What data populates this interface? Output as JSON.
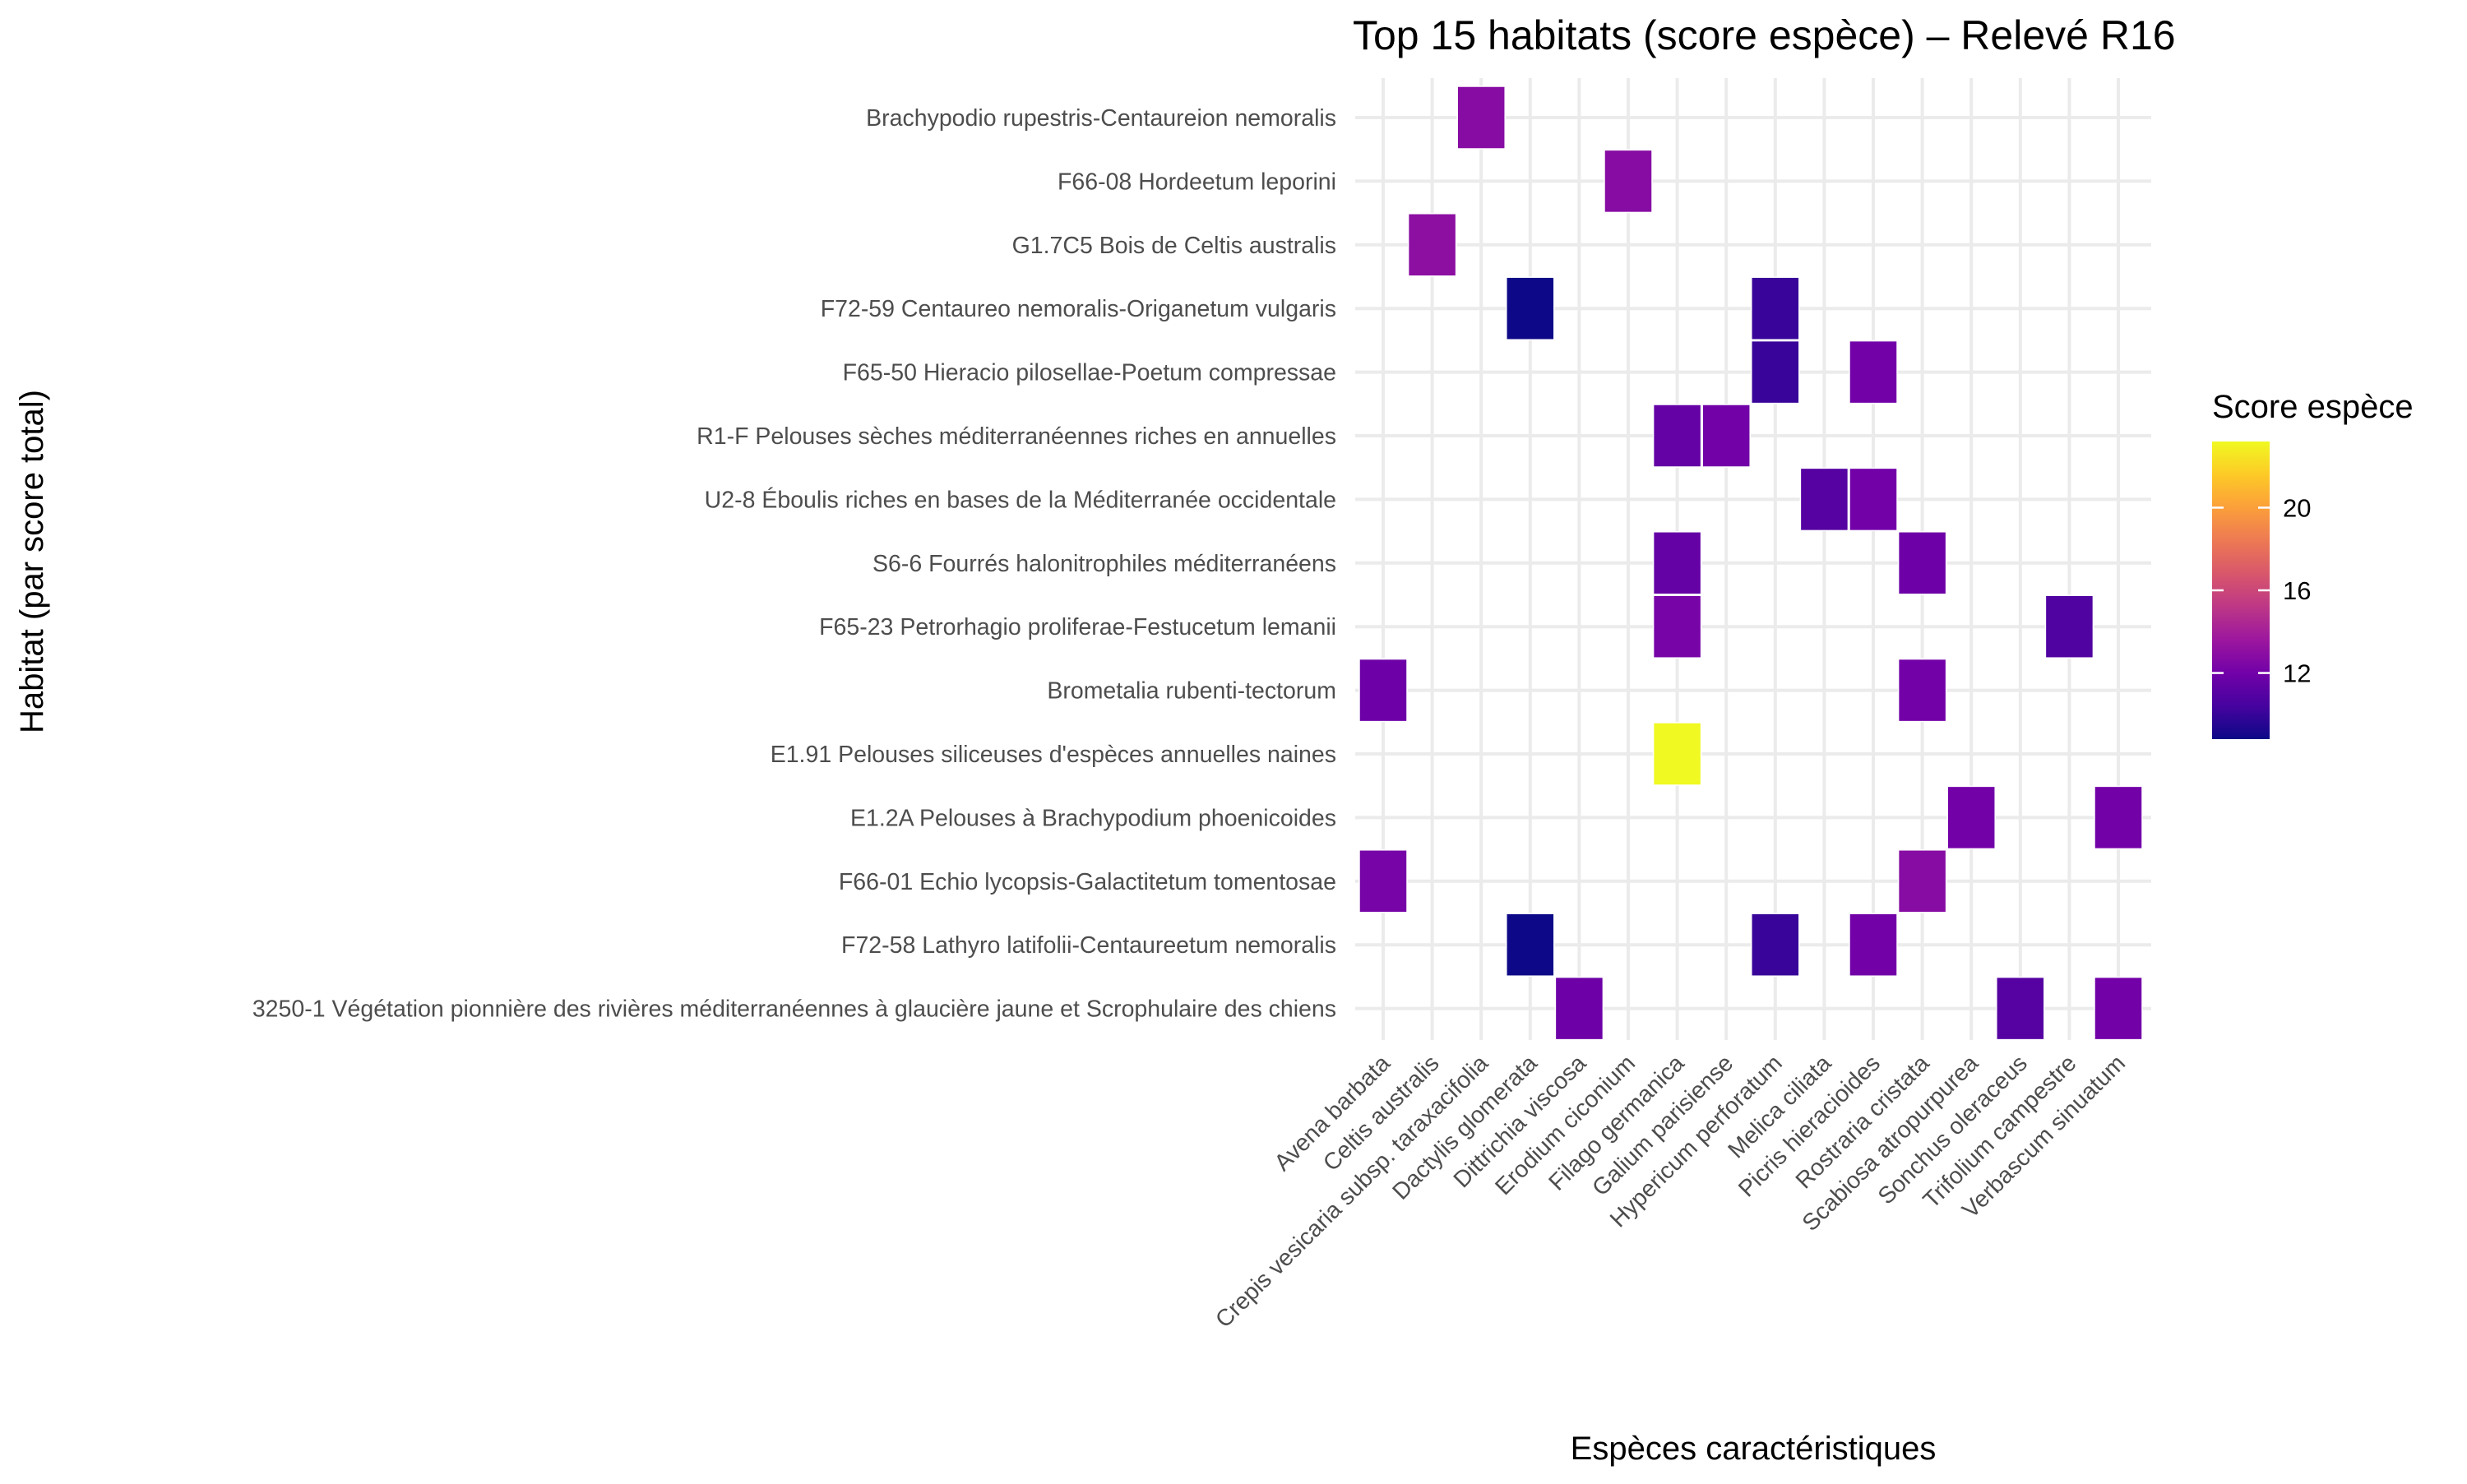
{
  "chart_data": {
    "type": "heatmap",
    "title": "Top 15 habitats (score espèce) – Relevé R16",
    "xlabel": "Espèces caractéristiques",
    "ylabel": "Habitat (par score total)",
    "legend": {
      "title": "Score espèce",
      "ticks": [
        12,
        16,
        20
      ],
      "range": [
        8.8,
        23.2
      ],
      "position": "right",
      "palette": "plasma",
      "colors": [
        "#0d0887",
        "#46039f",
        "#7201a8",
        "#9c179e",
        "#bd3786",
        "#d8576b",
        "#ed7953",
        "#fb9f3a",
        "#fdca26",
        "#f0f921"
      ]
    },
    "grid": true,
    "x_categories": [
      "Avena barbata",
      "Celtis australis",
      "Crepis vesicaria subsp. taraxacifolia",
      "Dactylis glomerata",
      "Dittrichia viscosa",
      "Erodium ciconium",
      "Filago germanica",
      "Galium parisiense",
      "Hypericum perforatum",
      "Melica ciliata",
      "Picris hieracioides",
      "Rostraria cristata",
      "Scabiosa atropurpurea",
      "Sonchus oleraceus",
      "Trifolium campestre",
      "Verbascum sinuatum"
    ],
    "y_categories": [
      "Brachypodio rupestris-Centaureion nemoralis",
      "F66-08 Hordeetum leporini",
      "G1.7C5 Bois de Celtis australis",
      "F72-59 Centaureo nemoralis-Origanetum vulgaris",
      "F65-50 Hieracio pilosellae-Poetum compressae",
      "R1-F Pelouses sèches méditerranéennes riches en annuelles",
      "U2-8 Éboulis riches en bases de la Méditerranée occidentale",
      "S6-6 Fourrés halonitrophiles méditerranéens",
      "F65-23 Petrorhagio proliferae-Festucetum lemanii",
      "Brometalia rubenti-tectorum",
      "E1.91 Pelouses siliceuses d'espèces annuelles naines",
      "E1.2A Pelouses à Brachypodium phoenicoides",
      "F66-01 Echio lycopsis-Galactitetum tomentosae",
      "F72-58 Lathyro latifolii-Centaureetum nemoralis",
      "3250-1 Végétation pionnière des rivières méditerranéennes à glaucière jaune et Scrophulaire des chiens"
    ],
    "cells": [
      {
        "habitat": "Brachypodio rupestris-Centaureion nemoralis",
        "species": "Crepis vesicaria subsp. taraxacifolia",
        "value": 12.8
      },
      {
        "habitat": "F66-08 Hordeetum leporini",
        "species": "Erodium ciconium",
        "value": 12.8
      },
      {
        "habitat": "G1.7C5 Bois de Celtis australis",
        "species": "Celtis australis",
        "value": 13.0
      },
      {
        "habitat": "F72-59 Centaureo nemoralis-Origanetum vulgaris",
        "species": "Dactylis glomerata",
        "value": 8.8
      },
      {
        "habitat": "F72-59 Centaureo nemoralis-Origanetum vulgaris",
        "species": "Hypericum perforatum",
        "value": 10.0
      },
      {
        "habitat": "F65-50 Hieracio pilosellae-Poetum compressae",
        "species": "Hypericum perforatum",
        "value": 10.0
      },
      {
        "habitat": "F65-50 Hieracio pilosellae-Poetum compressae",
        "species": "Picris hieracioides",
        "value": 12.0
      },
      {
        "habitat": "R1-F Pelouses sèches méditerranéennes riches en annuelles",
        "species": "Filago germanica",
        "value": 11.5
      },
      {
        "habitat": "R1-F Pelouses sèches méditerranéennes riches en annuelles",
        "species": "Galium parisiense",
        "value": 12.0
      },
      {
        "habitat": "U2-8 Éboulis riches en bases de la Méditerranée occidentale",
        "species": "Melica ciliata",
        "value": 11.0
      },
      {
        "habitat": "U2-8 Éboulis riches en bases de la Méditerranée occidentale",
        "species": "Picris hieracioides",
        "value": 12.0
      },
      {
        "habitat": "S6-6 Fourrés halonitrophiles méditerranéens",
        "species": "Filago germanica",
        "value": 11.5
      },
      {
        "habitat": "S6-6 Fourrés halonitrophiles méditerranéens",
        "species": "Rostraria cristata",
        "value": 11.8
      },
      {
        "habitat": "F65-23 Petrorhagio proliferae-Festucetum lemanii",
        "species": "Filago germanica",
        "value": 12.2
      },
      {
        "habitat": "F65-23 Petrorhagio proliferae-Festucetum lemanii",
        "species": "Trifolium campestre",
        "value": 10.8
      },
      {
        "habitat": "Brometalia rubenti-tectorum",
        "species": "Avena barbata",
        "value": 11.8
      },
      {
        "habitat": "Brometalia rubenti-tectorum",
        "species": "Rostraria cristata",
        "value": 12.0
      },
      {
        "habitat": "E1.91 Pelouses siliceuses d'espèces annuelles naines",
        "species": "Filago germanica",
        "value": 23.2
      },
      {
        "habitat": "E1.2A Pelouses à Brachypodium phoenicoides",
        "species": "Scabiosa atropurpurea",
        "value": 12.0
      },
      {
        "habitat": "E1.2A Pelouses à Brachypodium phoenicoides",
        "species": "Verbascum sinuatum",
        "value": 12.0
      },
      {
        "habitat": "F66-01 Echio lycopsis-Galactitetum tomentosae",
        "species": "Avena barbata",
        "value": 12.2
      },
      {
        "habitat": "F66-01 Echio lycopsis-Galactitetum tomentosae",
        "species": "Rostraria cristata",
        "value": 12.8
      },
      {
        "habitat": "F72-58 Lathyro latifolii-Centaureetum nemoralis",
        "species": "Dactylis glomerata",
        "value": 8.8
      },
      {
        "habitat": "F72-58 Lathyro latifolii-Centaureetum nemoralis",
        "species": "Hypericum perforatum",
        "value": 10.0
      },
      {
        "habitat": "F72-58 Lathyro latifolii-Centaureetum nemoralis",
        "species": "Picris hieracioides",
        "value": 12.0
      },
      {
        "habitat": "3250-1 Végétation pionnière des rivières méditerranéennes à glaucière jaune et Scrophulaire des chiens",
        "species": "Dittrichia viscosa",
        "value": 11.8
      },
      {
        "habitat": "3250-1 Végétation pionnière des rivières méditerranéennes à glaucière jaune et Scrophulaire des chiens",
        "species": "Sonchus oleraceus",
        "value": 11.0
      },
      {
        "habitat": "3250-1 Végétation pionnière des rivières méditerranéennes à glaucière jaune et Scrophulaire des chiens",
        "species": "Verbascum sinuatum",
        "value": 12.0
      }
    ]
  }
}
